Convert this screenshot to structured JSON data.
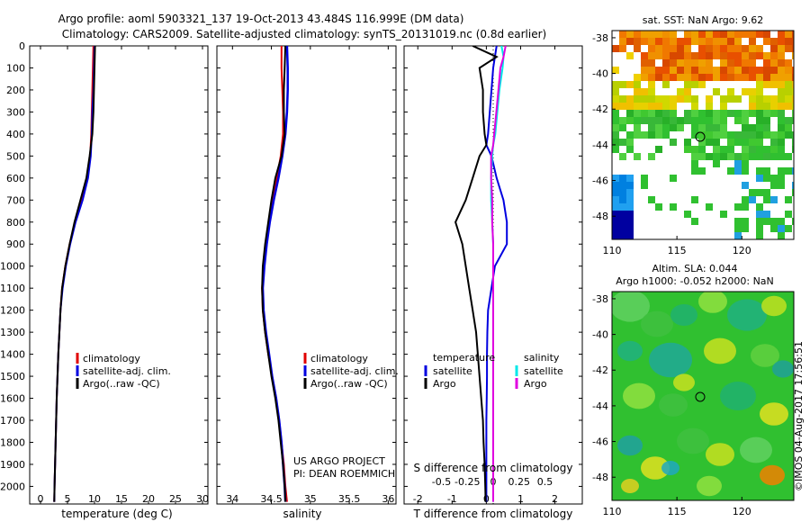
{
  "title_line1": "Argo profile: aoml 5903321_137 19-Oct-2013 43.484S 116.999E (DM data)",
  "title_line2": "Climatology: CARS2009. Satellite-adjusted climatology: synTS_20131019.nc (0.8d earlier)",
  "project_line1": "US ARGO PROJECT",
  "project_line2": "PI: DEAN ROEMMICH",
  "credit": "©IMOS 04-Aug-2017 17:56:51",
  "colors": {
    "climatology": "#e00000",
    "satellite": "#0000e0",
    "argo": "#000000",
    "salinity_satellite": "#00e8e8",
    "salinity_argo": "#e000e0"
  },
  "depth_ticks": [
    "0",
    "100",
    "200",
    "300",
    "400",
    "500",
    "600",
    "700",
    "800",
    "900",
    "1000",
    "1100",
    "1200",
    "1300",
    "1400",
    "1500",
    "1600",
    "1700",
    "1800",
    "1900",
    "2000"
  ],
  "chart_data": [
    {
      "type": "line",
      "id": "temperature",
      "xlabel": "temperature (deg C)",
      "ylabel": "",
      "xlim": [
        -2,
        31
      ],
      "ylim": [
        0,
        2080
      ],
      "x_ticks": [
        "0",
        "5",
        "10",
        "15",
        "20",
        "25",
        "30"
      ],
      "legend": [
        "climatology",
        "satellite-adj. clim.",
        "Argo(..raw -QC)"
      ],
      "depth": [
        0,
        100,
        200,
        300,
        400,
        500,
        600,
        700,
        800,
        900,
        1000,
        1100,
        1200,
        1300,
        1400,
        1500,
        1600,
        1700,
        1800,
        1900,
        2000,
        2070
      ],
      "series": [
        {
          "name": "climatology",
          "values": [
            9.8,
            9.7,
            9.6,
            9.5,
            9.4,
            9.2,
            8.6,
            7.6,
            6.4,
            5.4,
            4.6,
            4.0,
            3.7,
            3.5,
            3.3,
            3.15,
            3.0,
            2.9,
            2.8,
            2.7,
            2.6,
            2.55
          ]
        },
        {
          "name": "satellite",
          "values": [
            10.0,
            9.9,
            9.8,
            9.6,
            9.5,
            9.3,
            8.8,
            7.8,
            6.5,
            5.5,
            4.7,
            4.1,
            3.7,
            3.5,
            3.3,
            3.15,
            3.0,
            2.9,
            2.8,
            2.7,
            2.6,
            2.55
          ]
        },
        {
          "name": "argo",
          "values": [
            10.1,
            10.0,
            9.9,
            9.8,
            9.6,
            9.1,
            8.5,
            7.4,
            6.3,
            5.4,
            4.6,
            4.0,
            3.7,
            3.5,
            3.3,
            3.15,
            3.0,
            2.9,
            2.8,
            2.7,
            2.6,
            2.55
          ]
        }
      ]
    },
    {
      "type": "line",
      "id": "salinity",
      "xlabel": "salinity",
      "xlim": [
        33.8,
        36.1
      ],
      "ylim": [
        0,
        2080
      ],
      "x_ticks": [
        "34",
        "34.5",
        "35",
        "35.5",
        "36"
      ],
      "legend": [
        "climatology",
        "satellite-adj. clim.",
        "Argo(..raw -QC)"
      ],
      "depth": [
        0,
        100,
        200,
        300,
        400,
        500,
        600,
        700,
        800,
        900,
        1000,
        1100,
        1200,
        1300,
        1400,
        1500,
        1600,
        1700,
        1800,
        1900,
        2000,
        2070
      ],
      "series": [
        {
          "name": "climatology",
          "values": [
            34.63,
            34.63,
            34.64,
            34.65,
            34.65,
            34.62,
            34.57,
            34.52,
            34.47,
            34.43,
            34.4,
            34.38,
            34.39,
            34.42,
            34.46,
            34.51,
            34.56,
            34.6,
            34.63,
            34.66,
            34.68,
            34.7
          ]
        },
        {
          "name": "satellite",
          "values": [
            34.7,
            34.71,
            34.71,
            34.7,
            34.68,
            34.64,
            34.59,
            34.53,
            34.48,
            34.44,
            34.41,
            34.39,
            34.4,
            34.43,
            34.47,
            34.51,
            34.56,
            34.6,
            34.63,
            34.65,
            34.67,
            34.68
          ]
        },
        {
          "name": "argo",
          "values": [
            34.68,
            34.67,
            34.66,
            34.66,
            34.67,
            34.63,
            34.55,
            34.5,
            34.46,
            34.42,
            34.39,
            34.38,
            34.39,
            34.42,
            34.46,
            34.5,
            34.55,
            34.59,
            34.62,
            34.65,
            34.67,
            34.68
          ]
        }
      ]
    },
    {
      "type": "line",
      "id": "differences",
      "xlabel": "T difference from climatology",
      "xlabel_top": "S difference from climatology",
      "t_xlim": [
        -2.4,
        2.8
      ],
      "t_ticks": [
        "-2",
        "-1",
        "0",
        "1",
        "2"
      ],
      "s_ticks": [
        "-0.5",
        "-0.25",
        "0",
        "0.25",
        "0.5"
      ],
      "ylim": [
        0,
        2080
      ],
      "legend_temperature_title": "temperature",
      "legend_salinity_title": "salinity",
      "legend_items": [
        "satellite",
        "Argo"
      ],
      "depth": [
        0,
        50,
        100,
        200,
        300,
        400,
        450,
        500,
        600,
        700,
        800,
        900,
        1000,
        1100,
        1200,
        1300,
        1400,
        1500,
        1600,
        1700,
        1800,
        1900,
        2000,
        2070
      ],
      "series": [
        {
          "name": "temperature satellite",
          "values": [
            0.3,
            0.25,
            0.2,
            0.15,
            0.1,
            0.05,
            0.0,
            0.15,
            0.3,
            0.5,
            0.6,
            0.6,
            0.25,
            0.15,
            0.05,
            0.03,
            0.02,
            0.02,
            0.01,
            0.0,
            0.0,
            0.0,
            0.0,
            0.0
          ]
        },
        {
          "name": "temperature argo",
          "values": [
            -0.4,
            0.3,
            -0.2,
            -0.1,
            -0.1,
            -0.05,
            0.0,
            -0.2,
            -0.4,
            -0.6,
            -0.9,
            -0.7,
            -0.6,
            -0.5,
            -0.4,
            -0.3,
            -0.25,
            -0.2,
            -0.15,
            -0.1,
            -0.08,
            -0.05,
            -0.03,
            -0.02
          ]
        },
        {
          "name": "salinity satellite",
          "values": [
            0.08,
            0.1,
            0.09,
            0.06,
            0.04,
            0.02,
            0.0,
            -0.01,
            -0.02,
            -0.02,
            -0.01,
            0.0,
            0.0,
            0.0,
            0.0,
            0.0,
            0.0,
            0.0,
            0.0,
            0.0,
            0.0,
            0.0,
            0.0,
            0.0
          ]
        },
        {
          "name": "salinity argo",
          "values": [
            0.12,
            0.1,
            0.07,
            0.05,
            0.03,
            0.01,
            0.0,
            -0.02,
            -0.02,
            -0.01,
            -0.01,
            0.0,
            0.0,
            0.0,
            0.0,
            0.0,
            0.0,
            0.0,
            0.0,
            0.0,
            0.0,
            0.0,
            0.0,
            0.0
          ]
        }
      ]
    },
    {
      "type": "heatmap",
      "id": "sst_map",
      "title": "sat. SST: NaN Argo: 9.62",
      "x_ticks": [
        "110",
        "115",
        "120"
      ],
      "y_ticks": [
        "-38",
        "-40",
        "-42",
        "-44",
        "-46",
        "-48"
      ],
      "xlim": [
        110,
        124
      ],
      "ylim": [
        -49.3,
        -37.6
      ],
      "argo_position": [
        116.999,
        -43.484
      ]
    },
    {
      "type": "heatmap",
      "id": "sla_map",
      "title_line1": "Altim. SLA: 0.044",
      "title_line2": "Argo h1000: -0.052 h2000: NaN",
      "x_ticks": [
        "110",
        "115",
        "120"
      ],
      "y_ticks": [
        "-38",
        "-40",
        "-42",
        "-44",
        "-46",
        "-48"
      ],
      "xlim": [
        110,
        124
      ],
      "ylim": [
        -49.3,
        -37.6
      ],
      "argo_position": [
        116.999,
        -43.484
      ]
    }
  ]
}
